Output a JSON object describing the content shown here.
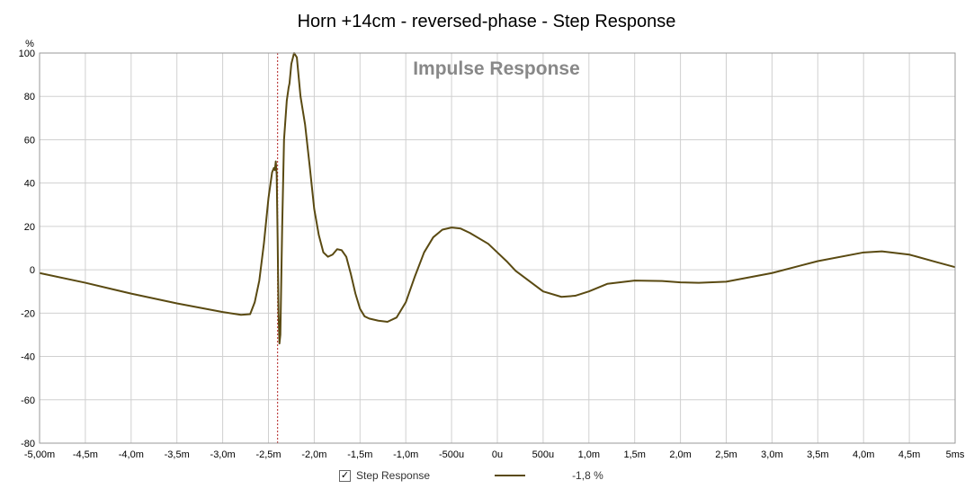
{
  "chart_data": {
    "type": "line",
    "title": "Horn +14cm - reversed-phase - Step Response",
    "watermark": "Impulse Response",
    "ylabel": "%",
    "xlim": [
      -5.0,
      5.0
    ],
    "ylim": [
      -80,
      100
    ],
    "x_unit": "ms",
    "grid": true,
    "x_ticks": [
      {
        "v": -5.0,
        "label": "-5,00m"
      },
      {
        "v": -4.5,
        "label": "-4,5m"
      },
      {
        "v": -4.0,
        "label": "-4,0m"
      },
      {
        "v": -3.5,
        "label": "-3,5m"
      },
      {
        "v": -3.0,
        "label": "-3,0m"
      },
      {
        "v": -2.5,
        "label": "-2,5m"
      },
      {
        "v": -2.0,
        "label": "-2,0m"
      },
      {
        "v": -1.5,
        "label": "-1,5m"
      },
      {
        "v": -1.0,
        "label": "-1,0m"
      },
      {
        "v": -0.5,
        "label": "-500u"
      },
      {
        "v": 0.0,
        "label": "0u"
      },
      {
        "v": 0.5,
        "label": "500u"
      },
      {
        "v": 1.0,
        "label": "1,0m"
      },
      {
        "v": 1.5,
        "label": "1,5m"
      },
      {
        "v": 2.0,
        "label": "2,0m"
      },
      {
        "v": 2.5,
        "label": "2,5m"
      },
      {
        "v": 3.0,
        "label": "3,0m"
      },
      {
        "v": 3.5,
        "label": "3,5m"
      },
      {
        "v": 4.0,
        "label": "4,0m"
      },
      {
        "v": 4.5,
        "label": "4,5m"
      },
      {
        "v": 5.0,
        "label": "5ms"
      }
    ],
    "y_ticks": [
      {
        "v": 100,
        "label": "100"
      },
      {
        "v": 80,
        "label": "80"
      },
      {
        "v": 60,
        "label": "60"
      },
      {
        "v": 40,
        "label": "40"
      },
      {
        "v": 20,
        "label": "20"
      },
      {
        "v": 0,
        "label": "0"
      },
      {
        "v": -20,
        "label": "-20"
      },
      {
        "v": -40,
        "label": "-40"
      },
      {
        "v": -60,
        "label": "-60"
      },
      {
        "v": -80,
        "label": "-80"
      }
    ],
    "cursor_x": -2.4,
    "series": [
      {
        "name": "Step Response",
        "color": "#5a4a12",
        "value_label": "-1,8 %",
        "points": [
          [
            -5.0,
            -1.5
          ],
          [
            -4.5,
            -6
          ],
          [
            -4.0,
            -11
          ],
          [
            -3.5,
            -15.5
          ],
          [
            -3.0,
            -19.5
          ],
          [
            -2.8,
            -20.8
          ],
          [
            -2.7,
            -20.5
          ],
          [
            -2.65,
            -15
          ],
          [
            -2.6,
            -5
          ],
          [
            -2.55,
            12
          ],
          [
            -2.5,
            33
          ],
          [
            -2.46,
            45
          ],
          [
            -2.44,
            47
          ],
          [
            -2.43,
            46
          ],
          [
            -2.42,
            50
          ],
          [
            -2.41,
            44
          ],
          [
            -2.4,
            15
          ],
          [
            -2.39,
            -20
          ],
          [
            -2.38,
            -34
          ],
          [
            -2.37,
            -30
          ],
          [
            -2.35,
            20
          ],
          [
            -2.33,
            60
          ],
          [
            -2.3,
            78
          ],
          [
            -2.28,
            84
          ],
          [
            -2.27,
            86
          ],
          [
            -2.25,
            95
          ],
          [
            -2.22,
            100
          ],
          [
            -2.19,
            98
          ],
          [
            -2.15,
            80
          ],
          [
            -2.1,
            67
          ],
          [
            -2.05,
            48
          ],
          [
            -2.0,
            28
          ],
          [
            -1.95,
            16
          ],
          [
            -1.9,
            8
          ],
          [
            -1.85,
            6
          ],
          [
            -1.8,
            7
          ],
          [
            -1.75,
            9.5
          ],
          [
            -1.7,
            9
          ],
          [
            -1.65,
            6
          ],
          [
            -1.6,
            -2
          ],
          [
            -1.55,
            -11
          ],
          [
            -1.5,
            -18
          ],
          [
            -1.45,
            -21.5
          ],
          [
            -1.4,
            -22.5
          ],
          [
            -1.3,
            -23.5
          ],
          [
            -1.2,
            -24
          ],
          [
            -1.1,
            -22
          ],
          [
            -1.0,
            -15
          ],
          [
            -0.9,
            -3
          ],
          [
            -0.8,
            8
          ],
          [
            -0.7,
            15
          ],
          [
            -0.6,
            18.5
          ],
          [
            -0.5,
            19.5
          ],
          [
            -0.4,
            19
          ],
          [
            -0.3,
            17
          ],
          [
            -0.1,
            12
          ],
          [
            0.0,
            8
          ],
          [
            0.1,
            4
          ],
          [
            0.2,
            -0.5
          ],
          [
            0.5,
            -10
          ],
          [
            0.7,
            -12.5
          ],
          [
            0.85,
            -12
          ],
          [
            1.0,
            -10
          ],
          [
            1.2,
            -6.5
          ],
          [
            1.5,
            -5
          ],
          [
            1.8,
            -5.2
          ],
          [
            2.0,
            -5.8
          ],
          [
            2.2,
            -6
          ],
          [
            2.5,
            -5.5
          ],
          [
            3.0,
            -1.5
          ],
          [
            3.5,
            4
          ],
          [
            4.0,
            8
          ],
          [
            4.2,
            8.5
          ],
          [
            4.5,
            7
          ],
          [
            4.8,
            3.5
          ],
          [
            5.0,
            1.2
          ]
        ]
      }
    ]
  },
  "legend": {
    "checked_glyph": "✓",
    "label": "Step Response",
    "value": "-1,8 %"
  }
}
